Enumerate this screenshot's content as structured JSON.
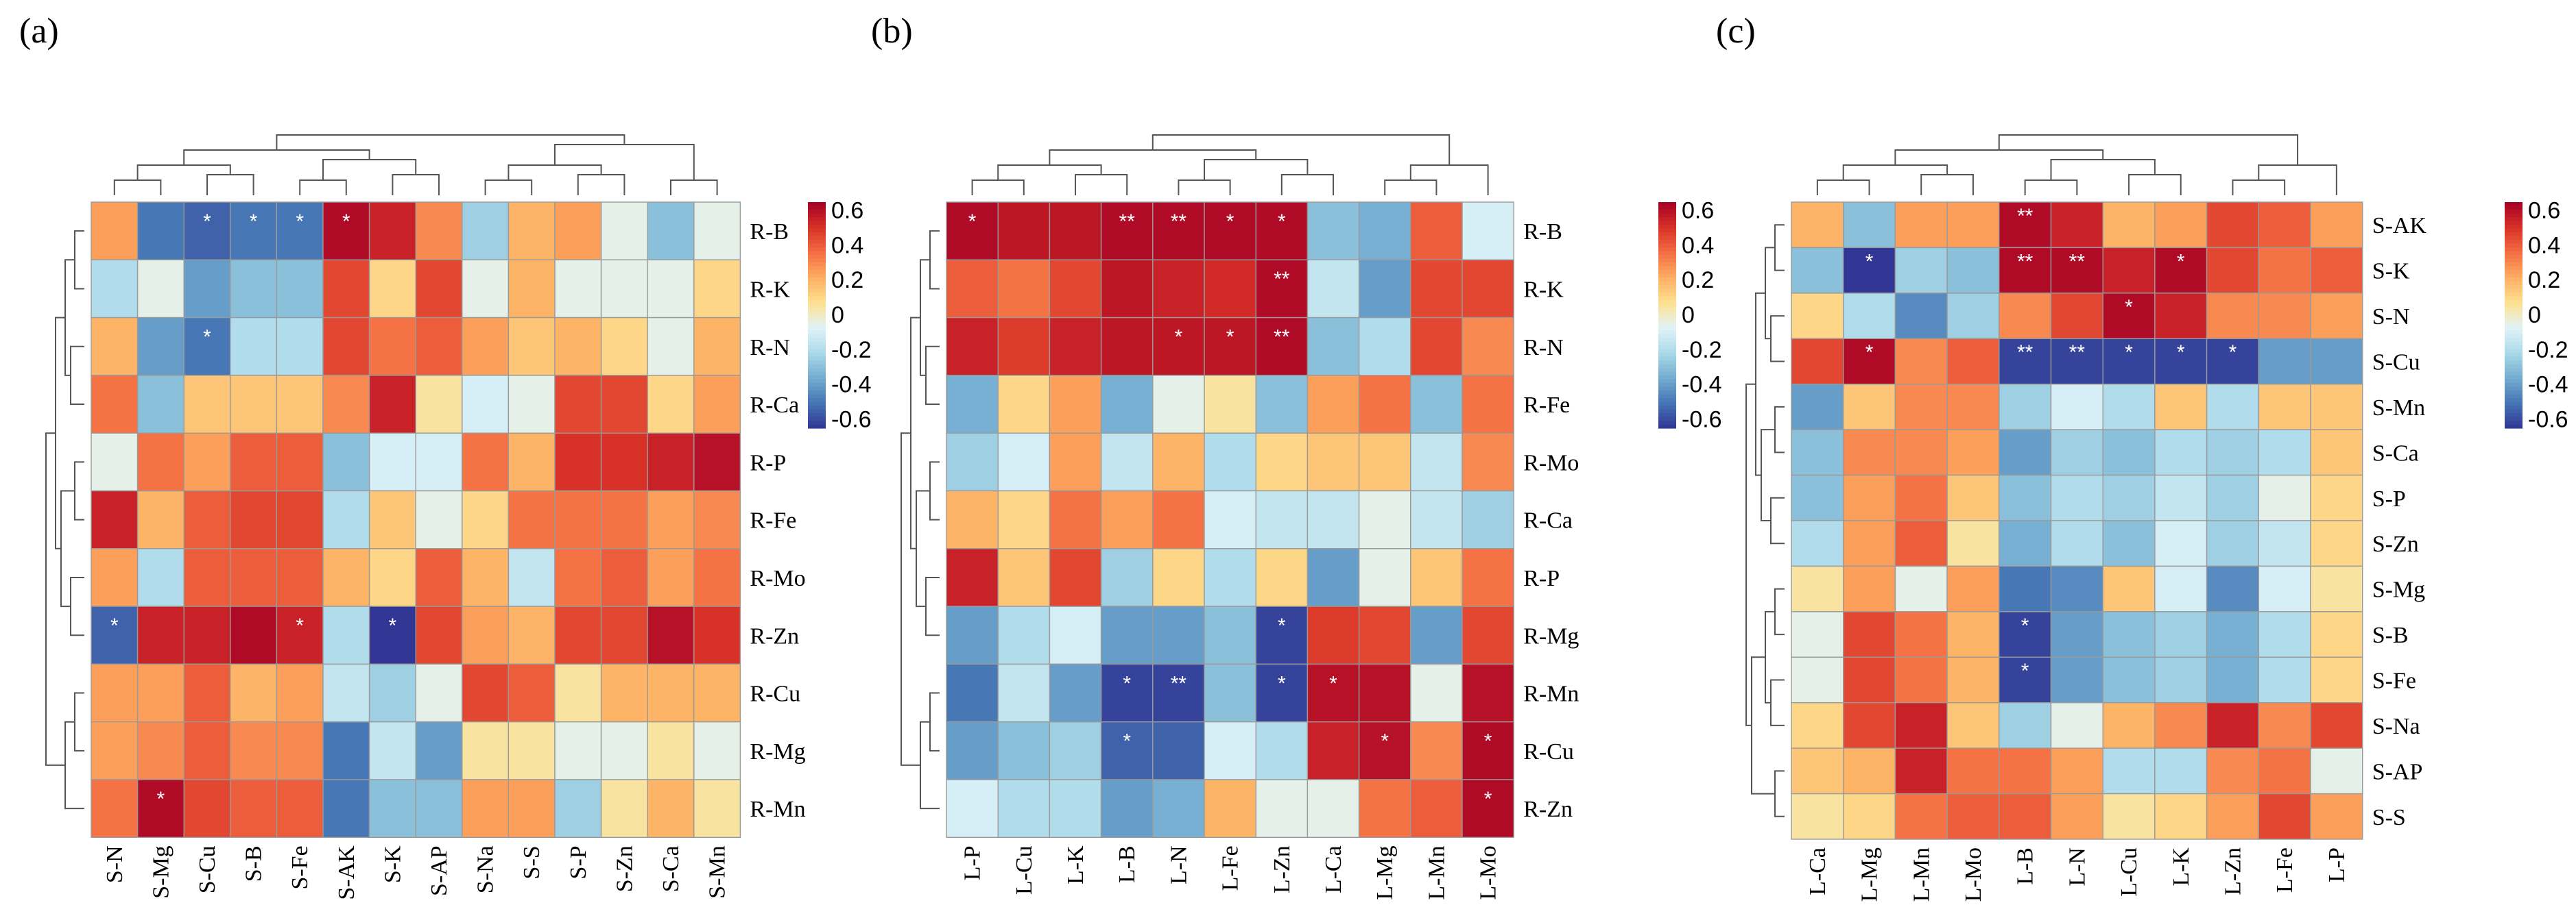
{
  "colors": {
    "scale": [
      "#313695",
      "#4575b4",
      "#74add1",
      "#abd9e9",
      "#e0f3f8",
      "#fee090",
      "#fdae61",
      "#f46d43",
      "#d73027",
      "#a50026"
    ],
    "cell_border": "#9a9a9a",
    "dendrogram": "#555555",
    "star": "#ffffff"
  },
  "chart_data": [
    {
      "type": "heatmap",
      "panel_label": "(a)",
      "rows": [
        "R-B",
        "R-K",
        "R-N",
        "R-Ca",
        "R-P",
        "R-Fe",
        "R-Mo",
        "R-Zn",
        "R-Cu",
        "R-Mg",
        "R-Mn"
      ],
      "cols": [
        "S-N",
        "S-Mg",
        "S-Cu",
        "S-B",
        "S-Fe",
        "S-AK",
        "S-K",
        "S-AP",
        "S-Na",
        "S-S",
        "S-P",
        "S-Zn",
        "S-Ca",
        "S-Mn"
      ],
      "values": [
        [
          0.25,
          -0.5,
          -0.55,
          -0.5,
          -0.5,
          0.62,
          0.55,
          0.3,
          -0.25,
          0.2,
          0.25,
          -0.05,
          -0.3,
          -0.05
        ],
        [
          -0.2,
          -0.05,
          -0.4,
          -0.3,
          -0.3,
          0.45,
          0.1,
          0.45,
          -0.05,
          0.2,
          -0.05,
          -0.05,
          -0.05,
          0.1
        ],
        [
          0.2,
          -0.4,
          -0.5,
          -0.2,
          -0.2,
          0.45,
          0.35,
          0.4,
          0.25,
          0.15,
          0.2,
          0.1,
          -0.05,
          0.2
        ],
        [
          0.35,
          -0.3,
          0.15,
          0.15,
          0.15,
          0.3,
          0.55,
          0.05,
          -0.1,
          -0.05,
          0.45,
          0.45,
          0.1,
          0.25
        ],
        [
          -0.05,
          0.35,
          0.25,
          0.4,
          0.4,
          -0.3,
          -0.1,
          -0.1,
          0.35,
          0.2,
          0.5,
          0.5,
          0.55,
          0.6
        ],
        [
          0.55,
          0.2,
          0.4,
          0.45,
          0.45,
          -0.2,
          0.15,
          -0.05,
          0.1,
          0.35,
          0.35,
          0.35,
          0.25,
          0.3
        ],
        [
          0.25,
          -0.2,
          0.4,
          0.4,
          0.4,
          0.2,
          0.1,
          0.4,
          0.2,
          -0.15,
          0.35,
          0.4,
          0.25,
          0.35
        ],
        [
          -0.55,
          0.55,
          0.55,
          0.62,
          0.55,
          -0.2,
          -0.65,
          0.45,
          0.25,
          0.2,
          0.45,
          0.45,
          0.6,
          0.5
        ],
        [
          0.25,
          0.25,
          0.4,
          0.2,
          0.25,
          -0.15,
          -0.25,
          -0.05,
          0.45,
          0.4,
          0.05,
          0.2,
          0.2,
          0.2
        ],
        [
          0.25,
          0.3,
          0.4,
          0.3,
          0.3,
          -0.5,
          -0.15,
          -0.4,
          0.05,
          0.05,
          -0.05,
          -0.05,
          0.05,
          -0.05
        ],
        [
          0.35,
          0.62,
          0.45,
          0.4,
          0.4,
          -0.5,
          -0.3,
          -0.3,
          0.25,
          0.25,
          -0.25,
          0.05,
          0.2,
          0.05
        ]
      ],
      "significance": [
        [
          "",
          "",
          "*",
          "*",
          "*",
          "*",
          "",
          "",
          "",
          "",
          "",
          "",
          "",
          ""
        ],
        [
          "",
          "",
          "",
          "",
          "",
          "",
          "",
          "",
          "",
          "",
          "",
          "",
          "",
          ""
        ],
        [
          "",
          "",
          "*",
          "",
          "",
          "",
          "",
          "",
          "",
          "",
          "",
          "",
          "",
          ""
        ],
        [
          "",
          "",
          "",
          "",
          "",
          "",
          "",
          "",
          "",
          "",
          "",
          "",
          "",
          ""
        ],
        [
          "",
          "",
          "",
          "",
          "",
          "",
          "",
          "",
          "",
          "",
          "",
          "",
          "",
          ""
        ],
        [
          "",
          "",
          "",
          "",
          "",
          "",
          "",
          "",
          "",
          "",
          "",
          "",
          "",
          ""
        ],
        [
          "",
          "",
          "",
          "",
          "",
          "",
          "",
          "",
          "",
          "",
          "",
          "",
          "",
          ""
        ],
        [
          "*",
          "",
          "",
          "",
          "*",
          "",
          "*",
          "",
          "",
          "",
          "",
          "",
          "",
          ""
        ],
        [
          "",
          "",
          "",
          "",
          "",
          "",
          "",
          "",
          "",
          "",
          "",
          "",
          "",
          ""
        ],
        [
          "",
          "",
          "",
          "",
          "",
          "",
          "",
          "",
          "",
          "",
          "",
          "",
          "",
          ""
        ],
        [
          "",
          "*",
          "",
          "",
          "",
          "",
          "",
          "",
          "",
          "",
          "",
          "",
          "",
          ""
        ]
      ],
      "colorbar_ticks": [
        "0.6",
        "0.4",
        "0.2",
        "0",
        "-0.2",
        "-0.4",
        "-0.6"
      ],
      "vmin": -0.65,
      "vmax": 0.65
    },
    {
      "type": "heatmap",
      "panel_label": "(b)",
      "rows": [
        "R-B",
        "R-K",
        "R-N",
        "R-Fe",
        "R-Mo",
        "R-Ca",
        "R-P",
        "R-Mg",
        "R-Mn",
        "R-Cu",
        "R-Zn"
      ],
      "cols": [
        "L-P",
        "L-Cu",
        "L-K",
        "L-B",
        "L-N",
        "L-Fe",
        "L-Zn",
        "L-Ca",
        "L-Mg",
        "L-Mn",
        "L-Mo"
      ],
      "values": [
        [
          0.62,
          0.58,
          0.58,
          0.62,
          0.62,
          0.62,
          0.62,
          -0.3,
          -0.35,
          0.4,
          -0.1
        ],
        [
          0.4,
          0.35,
          0.45,
          0.58,
          0.55,
          0.52,
          0.62,
          -0.15,
          -0.4,
          0.45,
          0.45
        ],
        [
          0.55,
          0.48,
          0.55,
          0.58,
          0.58,
          0.58,
          0.62,
          -0.3,
          -0.2,
          0.45,
          0.3
        ],
        [
          -0.35,
          0.1,
          0.25,
          -0.35,
          -0.05,
          0.05,
          -0.3,
          0.25,
          0.35,
          -0.3,
          0.35
        ],
        [
          -0.25,
          -0.1,
          0.25,
          -0.15,
          0.2,
          -0.2,
          0.1,
          0.15,
          0.15,
          -0.15,
          0.3
        ],
        [
          0.2,
          0.1,
          0.35,
          0.25,
          0.35,
          -0.1,
          -0.15,
          -0.15,
          -0.05,
          -0.15,
          -0.25
        ],
        [
          0.55,
          0.15,
          0.45,
          -0.25,
          0.1,
          -0.2,
          0.1,
          -0.4,
          -0.05,
          0.15,
          0.35
        ],
        [
          -0.4,
          -0.2,
          -0.1,
          -0.4,
          -0.4,
          -0.3,
          -0.62,
          0.48,
          0.45,
          -0.4,
          0.45
        ],
        [
          -0.5,
          -0.15,
          -0.4,
          -0.62,
          -0.62,
          -0.3,
          -0.62,
          0.6,
          0.6,
          -0.05,
          0.6
        ],
        [
          -0.4,
          -0.3,
          -0.25,
          -0.55,
          -0.55,
          -0.1,
          -0.2,
          0.55,
          0.6,
          0.3,
          0.62
        ],
        [
          -0.1,
          -0.2,
          -0.2,
          -0.4,
          -0.35,
          0.2,
          -0.05,
          -0.05,
          0.35,
          0.4,
          0.62
        ]
      ],
      "significance": [
        [
          "*",
          "",
          "",
          "**",
          "**",
          "*",
          "*",
          "",
          "",
          "",
          ""
        ],
        [
          "",
          "",
          "",
          "",
          "",
          "",
          "**",
          "",
          "",
          "",
          ""
        ],
        [
          "",
          "",
          "",
          "",
          "*",
          "*",
          "**",
          "",
          "",
          "",
          ""
        ],
        [
          "",
          "",
          "",
          "",
          "",
          "",
          "",
          "",
          "",
          "",
          ""
        ],
        [
          "",
          "",
          "",
          "",
          "",
          "",
          "",
          "",
          "",
          "",
          ""
        ],
        [
          "",
          "",
          "",
          "",
          "",
          "",
          "",
          "",
          "",
          "",
          ""
        ],
        [
          "",
          "",
          "",
          "",
          "",
          "",
          "",
          "",
          "",
          "",
          ""
        ],
        [
          "",
          "",
          "",
          "",
          "",
          "",
          "*",
          "",
          "",
          "",
          ""
        ],
        [
          "",
          "",
          "",
          "*",
          "**",
          "",
          "*",
          "*",
          "",
          "",
          ""
        ],
        [
          "",
          "",
          "",
          "*",
          "",
          "",
          "",
          "",
          "*",
          "",
          "*"
        ],
        [
          "",
          "",
          "",
          "",
          "",
          "",
          "",
          "",
          "",
          "",
          "*"
        ]
      ],
      "colorbar_ticks": [
        "0.6",
        "0.4",
        "0.2",
        "0",
        "-0.2",
        "-0.4",
        "-0.6"
      ],
      "vmin": -0.65,
      "vmax": 0.65
    },
    {
      "type": "heatmap",
      "panel_label": "(c)",
      "rows": [
        "S-AK",
        "S-K",
        "S-N",
        "S-Cu",
        "S-Mn",
        "S-Ca",
        "S-P",
        "S-Zn",
        "S-Mg",
        "S-B",
        "S-Fe",
        "S-Na",
        "S-AP",
        "S-S"
      ],
      "cols": [
        "L-Ca",
        "L-Mg",
        "L-Mn",
        "L-Mo",
        "L-B",
        "L-N",
        "L-Cu",
        "L-K",
        "L-Zn",
        "L-Fe",
        "L-P"
      ],
      "values": [
        [
          0.2,
          -0.3,
          0.25,
          0.25,
          0.62,
          0.55,
          0.2,
          0.25,
          0.45,
          0.4,
          0.25
        ],
        [
          -0.3,
          -0.65,
          -0.25,
          -0.3,
          0.62,
          0.62,
          0.55,
          0.62,
          0.45,
          0.35,
          0.4
        ],
        [
          0.1,
          -0.2,
          -0.45,
          -0.25,
          0.3,
          0.45,
          0.62,
          0.55,
          0.3,
          0.3,
          0.25
        ],
        [
          0.45,
          0.62,
          0.3,
          0.4,
          -0.62,
          -0.62,
          -0.62,
          -0.62,
          -0.62,
          -0.4,
          -0.4
        ],
        [
          -0.4,
          0.15,
          0.3,
          0.3,
          -0.25,
          -0.1,
          -0.2,
          0.15,
          -0.2,
          0.15,
          0.15
        ],
        [
          -0.3,
          0.3,
          0.3,
          0.25,
          -0.4,
          -0.25,
          -0.3,
          -0.2,
          -0.25,
          -0.2,
          0.15
        ],
        [
          -0.3,
          0.25,
          0.35,
          0.15,
          -0.3,
          -0.2,
          -0.25,
          -0.15,
          -0.25,
          -0.05,
          0.1
        ],
        [
          -0.2,
          0.25,
          0.4,
          0.05,
          -0.35,
          -0.2,
          -0.3,
          -0.1,
          -0.25,
          -0.15,
          0.1
        ],
        [
          0.05,
          0.25,
          -0.05,
          0.25,
          -0.5,
          -0.45,
          0.15,
          -0.1,
          -0.45,
          -0.1,
          0.05
        ],
        [
          -0.05,
          0.45,
          0.35,
          0.2,
          -0.62,
          -0.4,
          -0.3,
          -0.25,
          -0.35,
          -0.2,
          0.1
        ],
        [
          -0.05,
          0.45,
          0.35,
          0.2,
          -0.62,
          -0.4,
          -0.3,
          -0.25,
          -0.35,
          -0.2,
          0.1
        ],
        [
          0.1,
          0.45,
          0.55,
          0.15,
          -0.25,
          -0.05,
          0.2,
          0.3,
          0.55,
          0.3,
          0.45
        ],
        [
          0.15,
          0.2,
          0.55,
          0.35,
          0.35,
          0.25,
          -0.2,
          -0.2,
          0.3,
          0.35,
          -0.05
        ],
        [
          0.05,
          0.1,
          0.35,
          0.4,
          0.4,
          0.25,
          0.05,
          0.1,
          0.25,
          0.45,
          0.25
        ]
      ],
      "significance": [
        [
          "",
          "",
          "",
          "",
          "**",
          "",
          "",
          "",
          "",
          "",
          ""
        ],
        [
          "",
          "*",
          "",
          "",
          "**",
          "**",
          "",
          "*",
          "",
          "",
          ""
        ],
        [
          "",
          "",
          "",
          "",
          "",
          "",
          "*",
          "",
          "",
          "",
          ""
        ],
        [
          "",
          "*",
          "",
          "",
          "**",
          "**",
          "*",
          "*",
          "*",
          "",
          ""
        ],
        [
          "",
          "",
          "",
          "",
          "",
          "",
          "",
          "",
          "",
          "",
          ""
        ],
        [
          "",
          "",
          "",
          "",
          "",
          "",
          "",
          "",
          "",
          "",
          ""
        ],
        [
          "",
          "",
          "",
          "",
          "",
          "",
          "",
          "",
          "",
          "",
          ""
        ],
        [
          "",
          "",
          "",
          "",
          "",
          "",
          "",
          "",
          "",
          "",
          ""
        ],
        [
          "",
          "",
          "",
          "",
          "",
          "",
          "",
          "",
          "",
          "",
          ""
        ],
        [
          "",
          "",
          "",
          "",
          "*",
          "",
          "",
          "",
          "",
          "",
          ""
        ],
        [
          "",
          "",
          "",
          "",
          "*",
          "",
          "",
          "",
          "",
          "",
          ""
        ],
        [
          "",
          "",
          "",
          "",
          "",
          "",
          "",
          "",
          "",
          "",
          ""
        ],
        [
          "",
          "",
          "",
          "",
          "",
          "",
          "",
          "",
          "",
          "",
          ""
        ],
        [
          "",
          "",
          "",
          "",
          "",
          "",
          "",
          "",
          "",
          "",
          ""
        ]
      ],
      "colorbar_ticks": [
        "0.6",
        "0.4",
        "0.2",
        "0",
        "-0.2",
        "-0.4",
        "-0.6"
      ],
      "vmin": -0.65,
      "vmax": 0.65
    }
  ]
}
